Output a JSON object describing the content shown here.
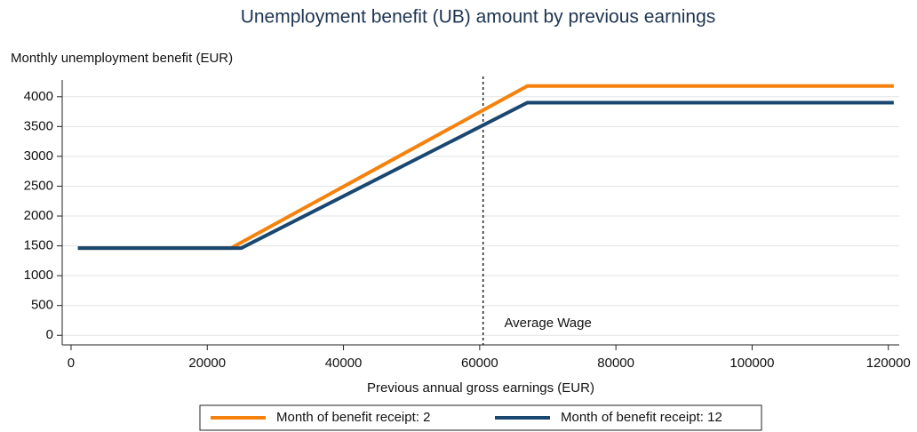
{
  "chart_data": {
    "type": "line",
    "title": "Unemployment benefit (UB) amount by previous earnings",
    "y_label": "Monthly unemployment benefit (EUR)",
    "x_label": "Previous annual gross earnings (EUR)",
    "x": [
      1000,
      23500,
      25000,
      67000,
      120800
    ],
    "series": [
      {
        "name": "Month of benefit receipt: 2",
        "color": "#f5820d",
        "values": [
          1463,
          1463,
          1557,
          4180,
          4180
        ]
      },
      {
        "name": "Month of benefit receipt: 12",
        "color": "#1a4770",
        "values": [
          1463,
          1463,
          1463,
          3900,
          3900
        ]
      }
    ],
    "xlim": [
      -1300,
      121600
    ],
    "xticks": [
      0,
      20000,
      40000,
      60000,
      80000,
      100000,
      120000
    ],
    "ylim": [
      -160,
      4280
    ],
    "yticks": [
      0,
      500,
      1000,
      1500,
      2000,
      2500,
      3000,
      3500,
      4000
    ],
    "grid": true,
    "vline": 60500,
    "annotations": [
      {
        "text": "Average Wage",
        "x": 63600,
        "y": 200
      }
    ],
    "legend": "bottom"
  }
}
